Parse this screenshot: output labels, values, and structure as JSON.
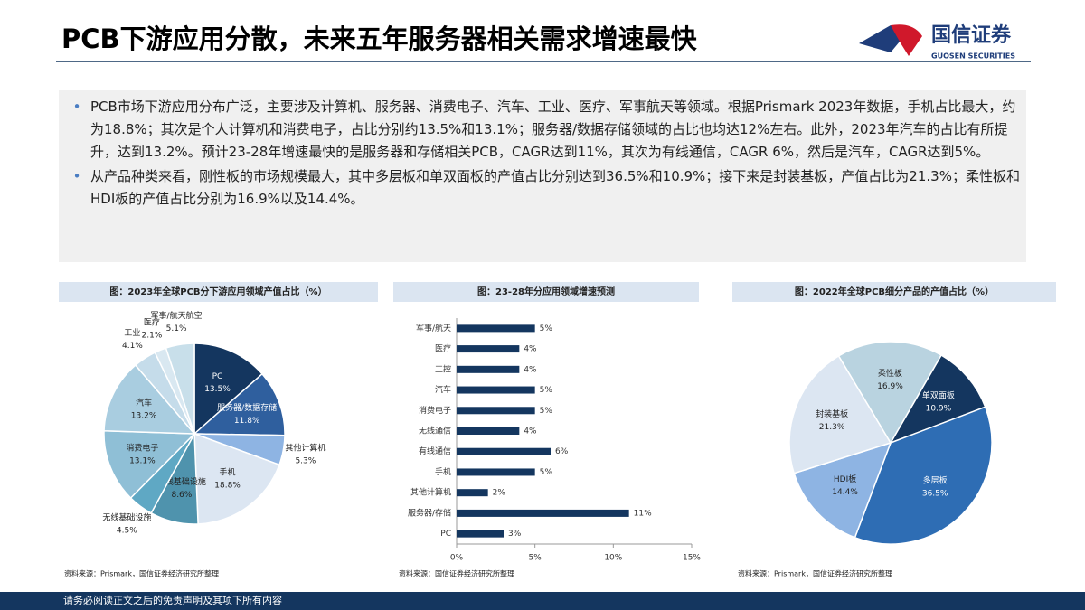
{
  "header": {
    "title": "PCB下游应用分散，未来五年服务器相关需求增速最快",
    "logo_name": "国信证券",
    "logo_sub": "GUOSEN SECURITIES"
  },
  "bullets": [
    "PCB市场下游应用分布广泛，主要涉及计算机、服务器、消费电子、汽车、工业、医疗、军事航天等领域。根据Prismark 2023年数据，手机占比最大，约为18.8%；其次是个人计算机和消费电子，占比分别约13.5%和13.1%；服务器/数据存储领域的占比也均达12%左右。此外，2023年汽车的占比有所提升，达到13.2%。预计23-28年增速最快的是服务器和存储相关PCB，CAGR达到11%，其次为有线通信，CAGR 6%，然后是汽车，CAGR达到5%。",
    "从产品种类来看，刚性板的市场规模最大，其中多层板和单双面板的产值占比分别达到36.5%和10.9%；接下来是封装基板，产值占比为21.3%；柔性板和HDI板的产值占比分别为16.9%以及14.4%。"
  ],
  "chart_data": [
    {
      "type": "pie",
      "title": "图：2023年全球PCB分下游应用领域产值占比（%）",
      "source": "资料来源：Prismark，国信证券经济研究所整理",
      "categories": [
        "PC",
        "服务器/数据存储",
        "其他计算机",
        "手机",
        "有线基础设施",
        "无线基础设施",
        "消费电子",
        "汽车",
        "工业",
        "医疗",
        "军事/航天航空"
      ],
      "values": [
        13.5,
        11.8,
        5.3,
        18.8,
        8.6,
        4.5,
        13.1,
        13.2,
        4.1,
        2.1,
        5.1
      ],
      "value_labels": [
        "13.5%",
        "11.8%",
        "5.3%",
        "18.8%",
        "8.6%",
        "4.5%",
        "13.1%",
        "13.2%",
        "4.1%",
        "2.1%",
        "5.1%"
      ],
      "colors": [
        "#14365f",
        "#2f5f9e",
        "#8eb4e3",
        "#dce6f2",
        "#4f93ad",
        "#5fa8c4",
        "#8fbfd6",
        "#a9cde0",
        "#c5dcea",
        "#d9e8f1",
        "#c8dfea"
      ]
    },
    {
      "type": "hbar",
      "title": "图：23-28年分应用领域增速预测",
      "source": "资料来源：国信证券经济研究所整理",
      "categories": [
        "军事/航天",
        "医疗",
        "工控",
        "汽车",
        "消费电子",
        "无线通信",
        "有线通信",
        "手机",
        "其他计算机",
        "服务器/存储",
        "PC"
      ],
      "values": [
        5,
        4,
        4,
        5,
        5,
        4,
        6,
        5,
        2,
        11,
        3
      ],
      "value_labels": [
        "5%",
        "4%",
        "4%",
        "5%",
        "5%",
        "4%",
        "6%",
        "5%",
        "2%",
        "11%",
        "3%"
      ],
      "color": "#14365f",
      "xlim": [
        0,
        15
      ],
      "xticks": [
        {
          "value": 0,
          "label": "0%"
        },
        {
          "value": 5,
          "label": "5%"
        },
        {
          "value": 10,
          "label": "10%"
        },
        {
          "value": 15,
          "label": "15%"
        }
      ]
    },
    {
      "type": "pie",
      "title": "图：2022年全球PCB细分产品的产值占比（%）",
      "source": "资料来源：Prismark，国信证券经济研究所整理",
      "categories": [
        "单双面板",
        "多层板",
        "HDI板",
        "封装基板",
        "柔性板"
      ],
      "values": [
        10.9,
        36.5,
        14.4,
        21.3,
        16.9
      ],
      "value_labels": [
        "10.9%",
        "36.5%",
        "14.4%",
        "21.3%",
        "16.9%"
      ],
      "colors": [
        "#14365f",
        "#2e6db4",
        "#8eb4e3",
        "#dce6f2",
        "#b9d3e0"
      ]
    }
  ],
  "footer": "请务必阅读正文之后的免责声明及其项下所有内容"
}
